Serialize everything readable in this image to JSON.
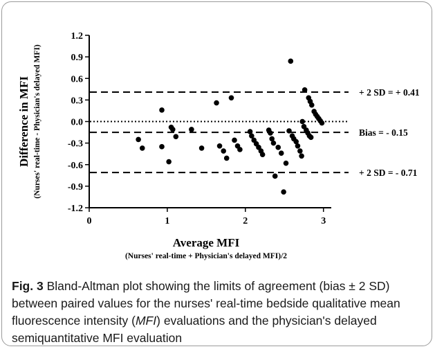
{
  "chart_data": {
    "type": "scatter",
    "title": "",
    "xlabel": "Average MFI",
    "xlabel_sub": "(Nurses' real-time + Physician's delayed MFI)/2",
    "ylabel": "Difference in MFI",
    "ylabel_sub": "(Nurses' real-time - Physician's delayed MFI)",
    "xlim": [
      0,
      3.1
    ],
    "ylim": [
      -1.2,
      1.2
    ],
    "x_ticks": [
      0,
      1,
      2,
      3
    ],
    "x_tick_labels": [
      "0",
      "1",
      "2",
      "3"
    ],
    "y_ticks": [
      1.2,
      0.9,
      0.6,
      0.3,
      0.0,
      -0.3,
      -0.6,
      -0.9,
      -1.2
    ],
    "y_tick_labels": [
      "1.2",
      "0.9",
      "0.6",
      "0.3",
      "0.0",
      "-0.3",
      "-0.6",
      "-0.9",
      "-1.2"
    ],
    "grid": false,
    "reference_lines": [
      {
        "y": 0.41,
        "style": "dashed",
        "label": "+ 2 SD = + 0.41"
      },
      {
        "y": -0.15,
        "style": "dashed",
        "label": "Bias = - 0.15"
      },
      {
        "y": -0.71,
        "style": "dashed",
        "label": "+ 2 SD = - 0.71"
      },
      {
        "y": 0.0,
        "style": "dotted",
        "label": ""
      }
    ],
    "points": [
      [
        0.63,
        -0.25
      ],
      [
        0.68,
        -0.37
      ],
      [
        0.93,
        0.16
      ],
      [
        0.93,
        -0.35
      ],
      [
        1.02,
        -0.56
      ],
      [
        1.05,
        -0.08
      ],
      [
        1.07,
        -0.11
      ],
      [
        1.11,
        -0.21
      ],
      [
        1.31,
        -0.11
      ],
      [
        1.44,
        -0.37
      ],
      [
        1.63,
        0.26
      ],
      [
        1.67,
        -0.34
      ],
      [
        1.72,
        -0.41
      ],
      [
        1.76,
        -0.51
      ],
      [
        1.82,
        0.33
      ],
      [
        1.86,
        -0.26
      ],
      [
        1.9,
        -0.34
      ],
      [
        1.93,
        -0.39
      ],
      [
        2.06,
        -0.14
      ],
      [
        2.08,
        -0.2
      ],
      [
        2.11,
        -0.26
      ],
      [
        2.14,
        -0.31
      ],
      [
        2.17,
        -0.36
      ],
      [
        2.2,
        -0.41
      ],
      [
        2.22,
        -0.46
      ],
      [
        2.3,
        -0.12
      ],
      [
        2.32,
        -0.16
      ],
      [
        2.34,
        -0.24
      ],
      [
        2.36,
        -0.3
      ],
      [
        2.38,
        -0.76
      ],
      [
        2.42,
        -0.36
      ],
      [
        2.46,
        -0.44
      ],
      [
        2.49,
        -0.98
      ],
      [
        2.52,
        -0.58
      ],
      [
        2.56,
        -0.13
      ],
      [
        2.58,
        0.84
      ],
      [
        2.6,
        -0.2
      ],
      [
        2.62,
        -0.24
      ],
      [
        2.65,
        -0.28
      ],
      [
        2.67,
        -0.34
      ],
      [
        2.7,
        -0.41
      ],
      [
        2.72,
        -0.48
      ],
      [
        2.73,
        0.0
      ],
      [
        2.75,
        -0.07
      ],
      [
        2.76,
        0.44
      ],
      [
        2.78,
        -0.12
      ],
      [
        2.8,
        -0.16
      ],
      [
        2.81,
        0.33
      ],
      [
        2.82,
        -0.2
      ],
      [
        2.83,
        0.28
      ],
      [
        2.84,
        -0.22
      ],
      [
        2.85,
        0.23
      ],
      [
        2.88,
        0.14
      ],
      [
        2.9,
        0.1
      ],
      [
        2.92,
        0.07
      ],
      [
        2.94,
        0.04
      ],
      [
        2.96,
        0.01
      ],
      [
        2.98,
        -0.02
      ]
    ]
  },
  "caption": {
    "label": "Fig. 3",
    "text_1": " Bland-Altman plot showing the limits of agreement (bias ± 2 SD) between paired values for the nurses' real-time bedside qualitative mean fluorescence intensity (",
    "abbr": "MFI",
    "text_2": ") evaluations and the physician's delayed semiquantitative MFI evaluation"
  }
}
